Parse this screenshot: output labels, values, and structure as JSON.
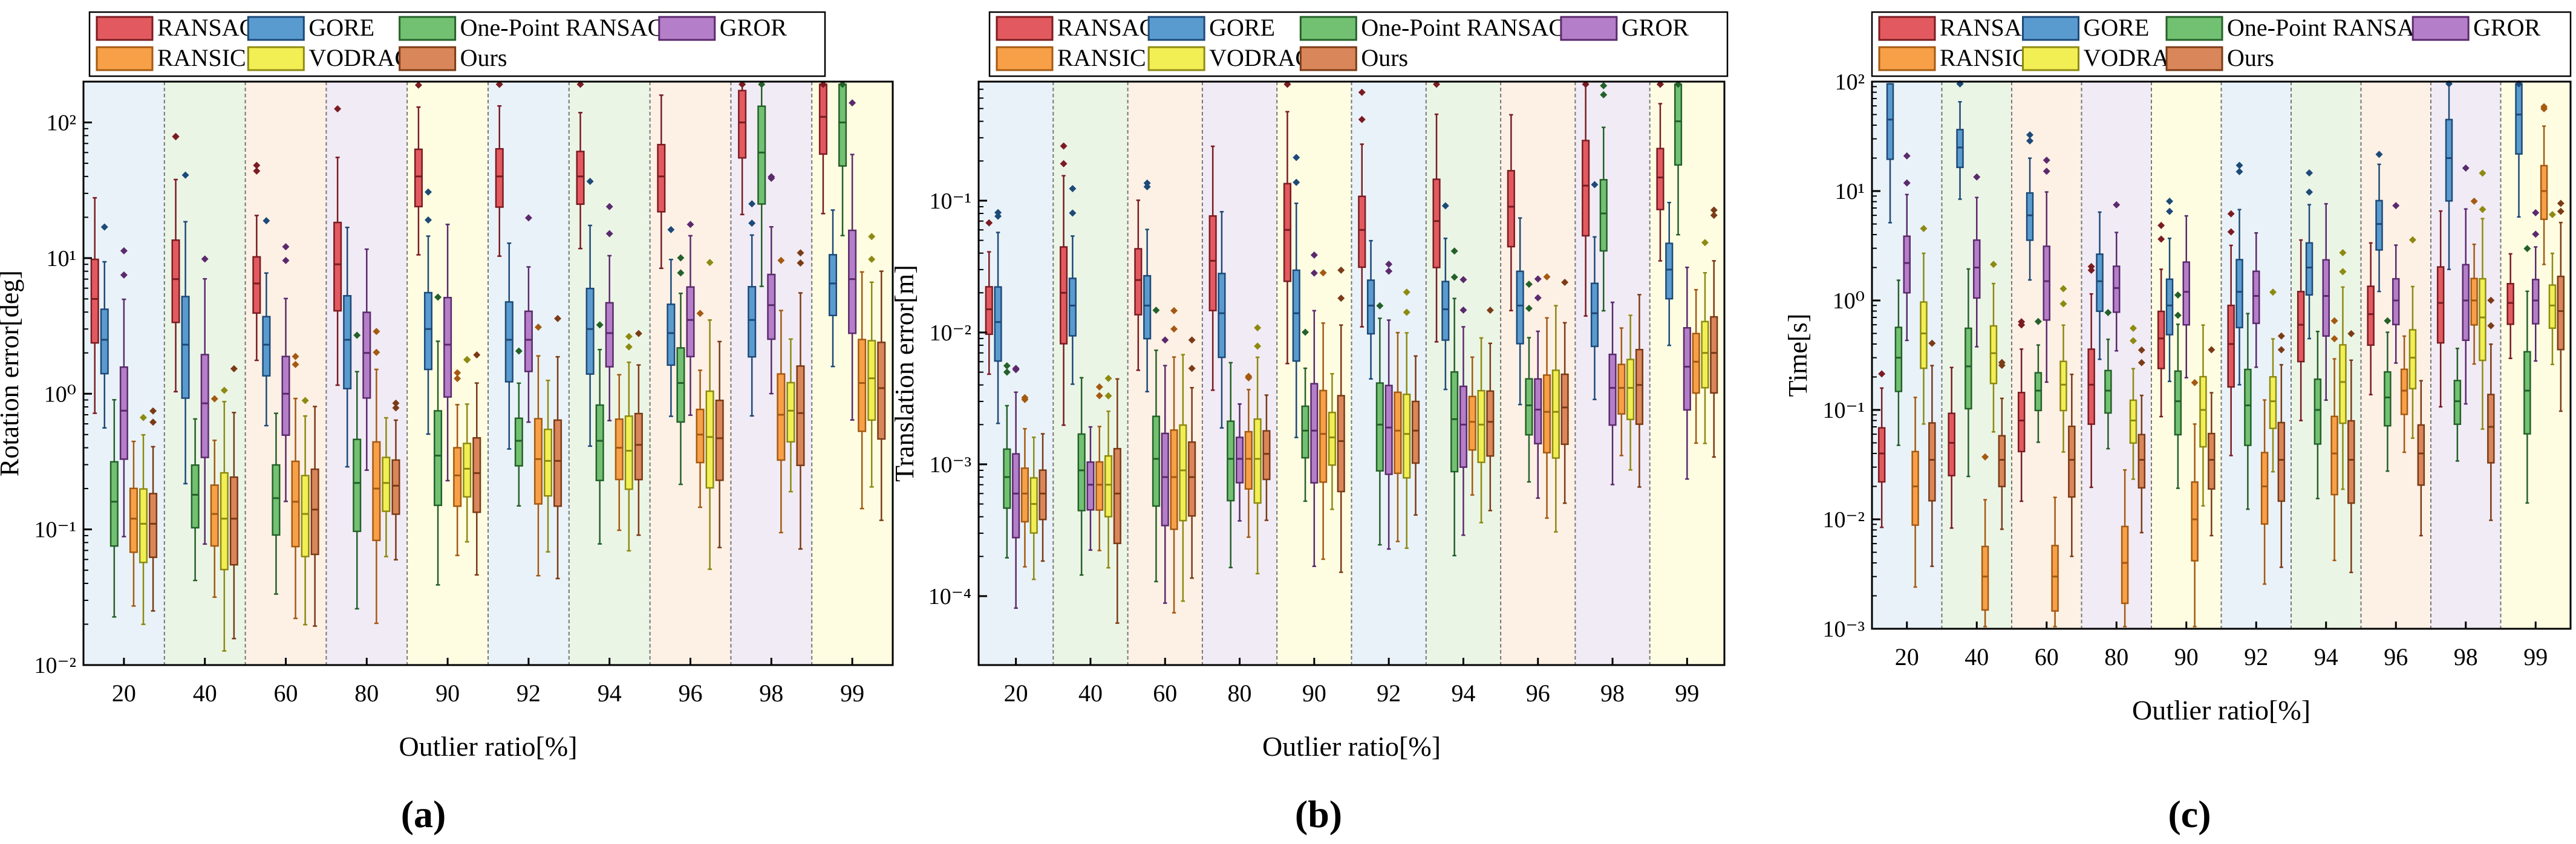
{
  "figure": {
    "panel_labels": [
      "(a)",
      "(b)",
      "(c)"
    ],
    "ratios": [
      "20",
      "40",
      "60",
      "80",
      "90",
      "92",
      "94",
      "96",
      "98",
      "99"
    ],
    "band_colors": [
      "#e9f2f8",
      "#ebf5e6",
      "#fdf0e5",
      "#f1ebf5",
      "#fefde2"
    ],
    "methods": [
      {
        "name": "RANSAC",
        "fill": "#e25a5f",
        "stroke": "#7a1c22"
      },
      {
        "name": "GORE",
        "fill": "#5a9bcf",
        "stroke": "#1d4a78"
      },
      {
        "name": "One-Point RANSAC",
        "fill": "#72c172",
        "stroke": "#24612a"
      },
      {
        "name": "GROR",
        "fill": "#b57ec8",
        "stroke": "#5b2a6d"
      },
      {
        "name": "RANSIC",
        "fill": "#f7a048",
        "stroke": "#a45a12"
      },
      {
        "name": "VODRAC",
        "fill": "#f2ef55",
        "stroke": "#8d8a12"
      },
      {
        "name": "Ours",
        "fill": "#d9865a",
        "stroke": "#7a3b16"
      }
    ]
  },
  "chart_data": [
    {
      "type": "box",
      "panel": "(a)",
      "title": "",
      "xlabel": "Outlier ratio[%]",
      "ylabel": "Rotation error[deg]",
      "yscale": "log",
      "ylim": [
        0.01,
        200
      ],
      "yticks": [
        0.01,
        0.1,
        1,
        10,
        100
      ],
      "ytick_labels": [
        "10^-2",
        "10^-1",
        "10^0",
        "10^1",
        "10^2"
      ],
      "categories": [
        "20",
        "40",
        "60",
        "80",
        "90",
        "92",
        "94",
        "96",
        "98",
        "99"
      ],
      "legend": [
        "RANSAC",
        "GORE",
        "One-Point RANSAC",
        "GROR",
        "RANSIC",
        "VODRAC",
        "Ours"
      ],
      "series": [
        {
          "name": "RANSAC",
          "medians": [
            5.0,
            7.0,
            6.5,
            9.0,
            40,
            40,
            40,
            40,
            100,
            110
          ]
        },
        {
          "name": "GORE",
          "medians": [
            2.5,
            2.3,
            2.3,
            2.5,
            3.0,
            2.5,
            3.0,
            2.8,
            3.5,
            6.5
          ]
        },
        {
          "name": "One-Point RANSAC",
          "medians": [
            0.16,
            0.18,
            0.17,
            0.22,
            0.35,
            0.45,
            0.45,
            1.2,
            60,
            100
          ]
        },
        {
          "name": "GROR",
          "medians": [
            0.75,
            0.85,
            1.0,
            2.0,
            2.3,
            2.5,
            2.8,
            3.5,
            4.5,
            7.0
          ]
        },
        {
          "name": "RANSIC",
          "medians": [
            0.12,
            0.13,
            0.16,
            0.2,
            0.25,
            0.33,
            0.4,
            0.5,
            0.7,
            1.2
          ]
        },
        {
          "name": "VODRAC",
          "medians": [
            0.11,
            0.12,
            0.13,
            0.22,
            0.28,
            0.32,
            0.38,
            0.48,
            0.75,
            1.3
          ]
        },
        {
          "name": "Ours",
          "medians": [
            0.11,
            0.12,
            0.14,
            0.21,
            0.26,
            0.32,
            0.42,
            0.47,
            0.72,
            1.1
          ]
        }
      ]
    },
    {
      "type": "box",
      "panel": "(b)",
      "title": "",
      "xlabel": "Outlier ratio[%]",
      "ylabel": "Translation error[m]",
      "yscale": "log",
      "ylim": [
        3e-05,
        0.8
      ],
      "yticks": [
        0.0001,
        0.001,
        0.01,
        0.1
      ],
      "ytick_labels": [
        "10^-4",
        "10^-3",
        "10^-2",
        "10^-1"
      ],
      "categories": [
        "20",
        "40",
        "60",
        "80",
        "90",
        "92",
        "94",
        "96",
        "98",
        "99"
      ],
      "legend": [
        "RANSAC",
        "GORE",
        "One-Point RANSAC",
        "GROR",
        "RANSIC",
        "VODRAC",
        "Ours"
      ],
      "series": [
        {
          "name": "RANSAC",
          "medians": [
            0.015,
            0.02,
            0.025,
            0.035,
            0.06,
            0.06,
            0.07,
            0.09,
            0.13,
            0.15
          ]
        },
        {
          "name": "GORE",
          "medians": [
            0.012,
            0.016,
            0.016,
            0.014,
            0.014,
            0.016,
            0.015,
            0.016,
            0.014,
            0.03
          ]
        },
        {
          "name": "One-Point RANSAC",
          "medians": [
            0.0008,
            0.0009,
            0.0011,
            0.0011,
            0.0018,
            0.002,
            0.0022,
            0.0028,
            0.08,
            0.4
          ]
        },
        {
          "name": "GROR",
          "medians": [
            0.0006,
            0.0007,
            0.0008,
            0.0011,
            0.0018,
            0.0019,
            0.002,
            0.0026,
            0.0038,
            0.0055
          ]
        },
        {
          "name": "RANSIC",
          "medians": [
            0.0006,
            0.0007,
            0.0008,
            0.0011,
            0.0017,
            0.0018,
            0.0021,
            0.0025,
            0.0038,
            0.006
          ]
        },
        {
          "name": "VODRAC",
          "medians": [
            0.0005,
            0.0007,
            0.0009,
            0.0011,
            0.0016,
            0.0017,
            0.002,
            0.0025,
            0.0038,
            0.007
          ]
        },
        {
          "name": "Ours",
          "medians": [
            0.0006,
            0.0006,
            0.0008,
            0.0012,
            0.0015,
            0.0018,
            0.0021,
            0.0027,
            0.004,
            0.007
          ]
        }
      ]
    },
    {
      "type": "box",
      "panel": "(c)",
      "title": "",
      "xlabel": "Outlier ratio[%]",
      "ylabel": "Time[s]",
      "yscale": "log",
      "ylim": [
        0.001,
        100
      ],
      "yticks": [
        0.001,
        0.01,
        0.1,
        1,
        10,
        100
      ],
      "ytick_labels": [
        "10^-3",
        "10^-2",
        "10^-1",
        "10^0",
        "10^1",
        "10^2"
      ],
      "categories": [
        "20",
        "40",
        "60",
        "80",
        "90",
        "92",
        "94",
        "96",
        "98",
        "99"
      ],
      "legend": [
        "RANSAC",
        "GORE",
        "One-Point RANSAC",
        "GROR",
        "RANSIC",
        "VODRAC",
        "Ours"
      ],
      "series": [
        {
          "name": "RANSAC",
          "medians": [
            0.04,
            0.05,
            0.08,
            0.17,
            0.45,
            0.4,
            0.6,
            0.75,
            0.95,
            0.95
          ]
        },
        {
          "name": "GORE",
          "medians": [
            45,
            25,
            6,
            1.5,
            0.9,
            1.2,
            2.0,
            5.0,
            20,
            50
          ]
        },
        {
          "name": "One-Point RANSAC",
          "medians": [
            0.3,
            0.25,
            0.15,
            0.15,
            0.12,
            0.11,
            0.1,
            0.13,
            0.12,
            0.15
          ]
        },
        {
          "name": "GROR",
          "medians": [
            2.2,
            2.0,
            1.5,
            1.3,
            1.2,
            1.1,
            1.1,
            1.0,
            1.0,
            1.0
          ]
        },
        {
          "name": "RANSIC",
          "medians": [
            0.02,
            0.003,
            0.003,
            0.004,
            0.01,
            0.02,
            0.04,
            0.15,
            1.0,
            10
          ]
        },
        {
          "name": "VODRAC",
          "medians": [
            0.5,
            0.33,
            0.17,
            0.08,
            0.1,
            0.12,
            0.18,
            0.3,
            0.7,
            0.9
          ]
        },
        {
          "name": "Ours",
          "medians": [
            0.035,
            0.035,
            0.035,
            0.035,
            0.035,
            0.035,
            0.035,
            0.04,
            0.07,
            0.8
          ]
        }
      ]
    }
  ]
}
